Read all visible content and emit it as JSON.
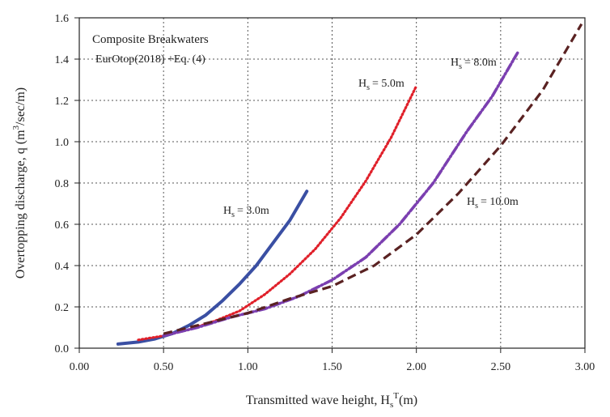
{
  "chart_data": {
    "type": "line",
    "title": "",
    "xlabel": "Transmitted wave height, H",
    "xlabel_sub": "s",
    "xlabel_sup": "T",
    "xlabel_unit": "(m)",
    "ylabel": "Overtopping discharge, q (m",
    "ylabel_sup": "3",
    "ylabel_unit": "/sec/m)",
    "xlim": [
      0,
      3
    ],
    "ylim": [
      0,
      1.6
    ],
    "x_ticks": [
      0,
      0.5,
      1,
      1.5,
      2,
      2.5,
      3
    ],
    "x_tick_labels": [
      "0.00",
      "0.50",
      "1.00",
      "1.50",
      "2.00",
      "2.50",
      "3.00"
    ],
    "y_ticks": [
      0,
      0.2,
      0.4,
      0.6,
      0.8,
      1.0,
      1.2,
      1.4,
      1.6
    ],
    "y_tick_labels": [
      "0.0",
      "0.2",
      "0.4",
      "0.6",
      "0.8",
      "1.0",
      "1.2",
      "1.4",
      "1.6"
    ],
    "grid": true,
    "annotations": [
      "Composite Breakwaters",
      "EurOtop(2018) +Eq. (4)"
    ],
    "series": [
      {
        "name": "= 3.0m",
        "label_prefix": "H",
        "label_sub": "s",
        "color": "#3a4fa3",
        "style": "solid",
        "x": [
          0.23,
          0.35,
          0.45,
          0.55,
          0.65,
          0.75,
          0.85,
          0.95,
          1.05,
          1.15,
          1.25,
          1.35
        ],
        "y": [
          0.02,
          0.03,
          0.045,
          0.07,
          0.11,
          0.16,
          0.23,
          0.31,
          0.4,
          0.51,
          0.62,
          0.76
        ]
      },
      {
        "name": "= 5.0m",
        "label_prefix": "H",
        "label_sub": "s",
        "color": "#e0202a",
        "style": "dotted",
        "x": [
          0.35,
          0.5,
          0.65,
          0.8,
          0.95,
          1.1,
          1.25,
          1.4,
          1.55,
          1.7,
          1.85,
          2.0
        ],
        "y": [
          0.04,
          0.06,
          0.09,
          0.13,
          0.18,
          0.26,
          0.36,
          0.48,
          0.63,
          0.81,
          1.02,
          1.27
        ]
      },
      {
        "name": "= 8.0m",
        "label_prefix": "H",
        "label_sub": "s",
        "color": "#7b3fb0",
        "style": "dashdot",
        "x": [
          0.5,
          0.7,
          0.9,
          1.1,
          1.3,
          1.5,
          1.7,
          1.9,
          2.1,
          2.3,
          2.45,
          2.6
        ],
        "y": [
          0.06,
          0.1,
          0.15,
          0.19,
          0.25,
          0.33,
          0.44,
          0.6,
          0.8,
          1.05,
          1.22,
          1.43
        ]
      },
      {
        "name": "= 10.0m",
        "label_prefix": "H",
        "label_sub": "s",
        "color": "#5a2222",
        "style": "dashed",
        "x": [
          0.5,
          0.75,
          1.0,
          1.25,
          1.5,
          1.75,
          2.0,
          2.25,
          2.5,
          2.75,
          2.98
        ],
        "y": [
          0.07,
          0.12,
          0.17,
          0.24,
          0.3,
          0.4,
          0.55,
          0.75,
          0.98,
          1.25,
          1.57
        ]
      }
    ]
  }
}
